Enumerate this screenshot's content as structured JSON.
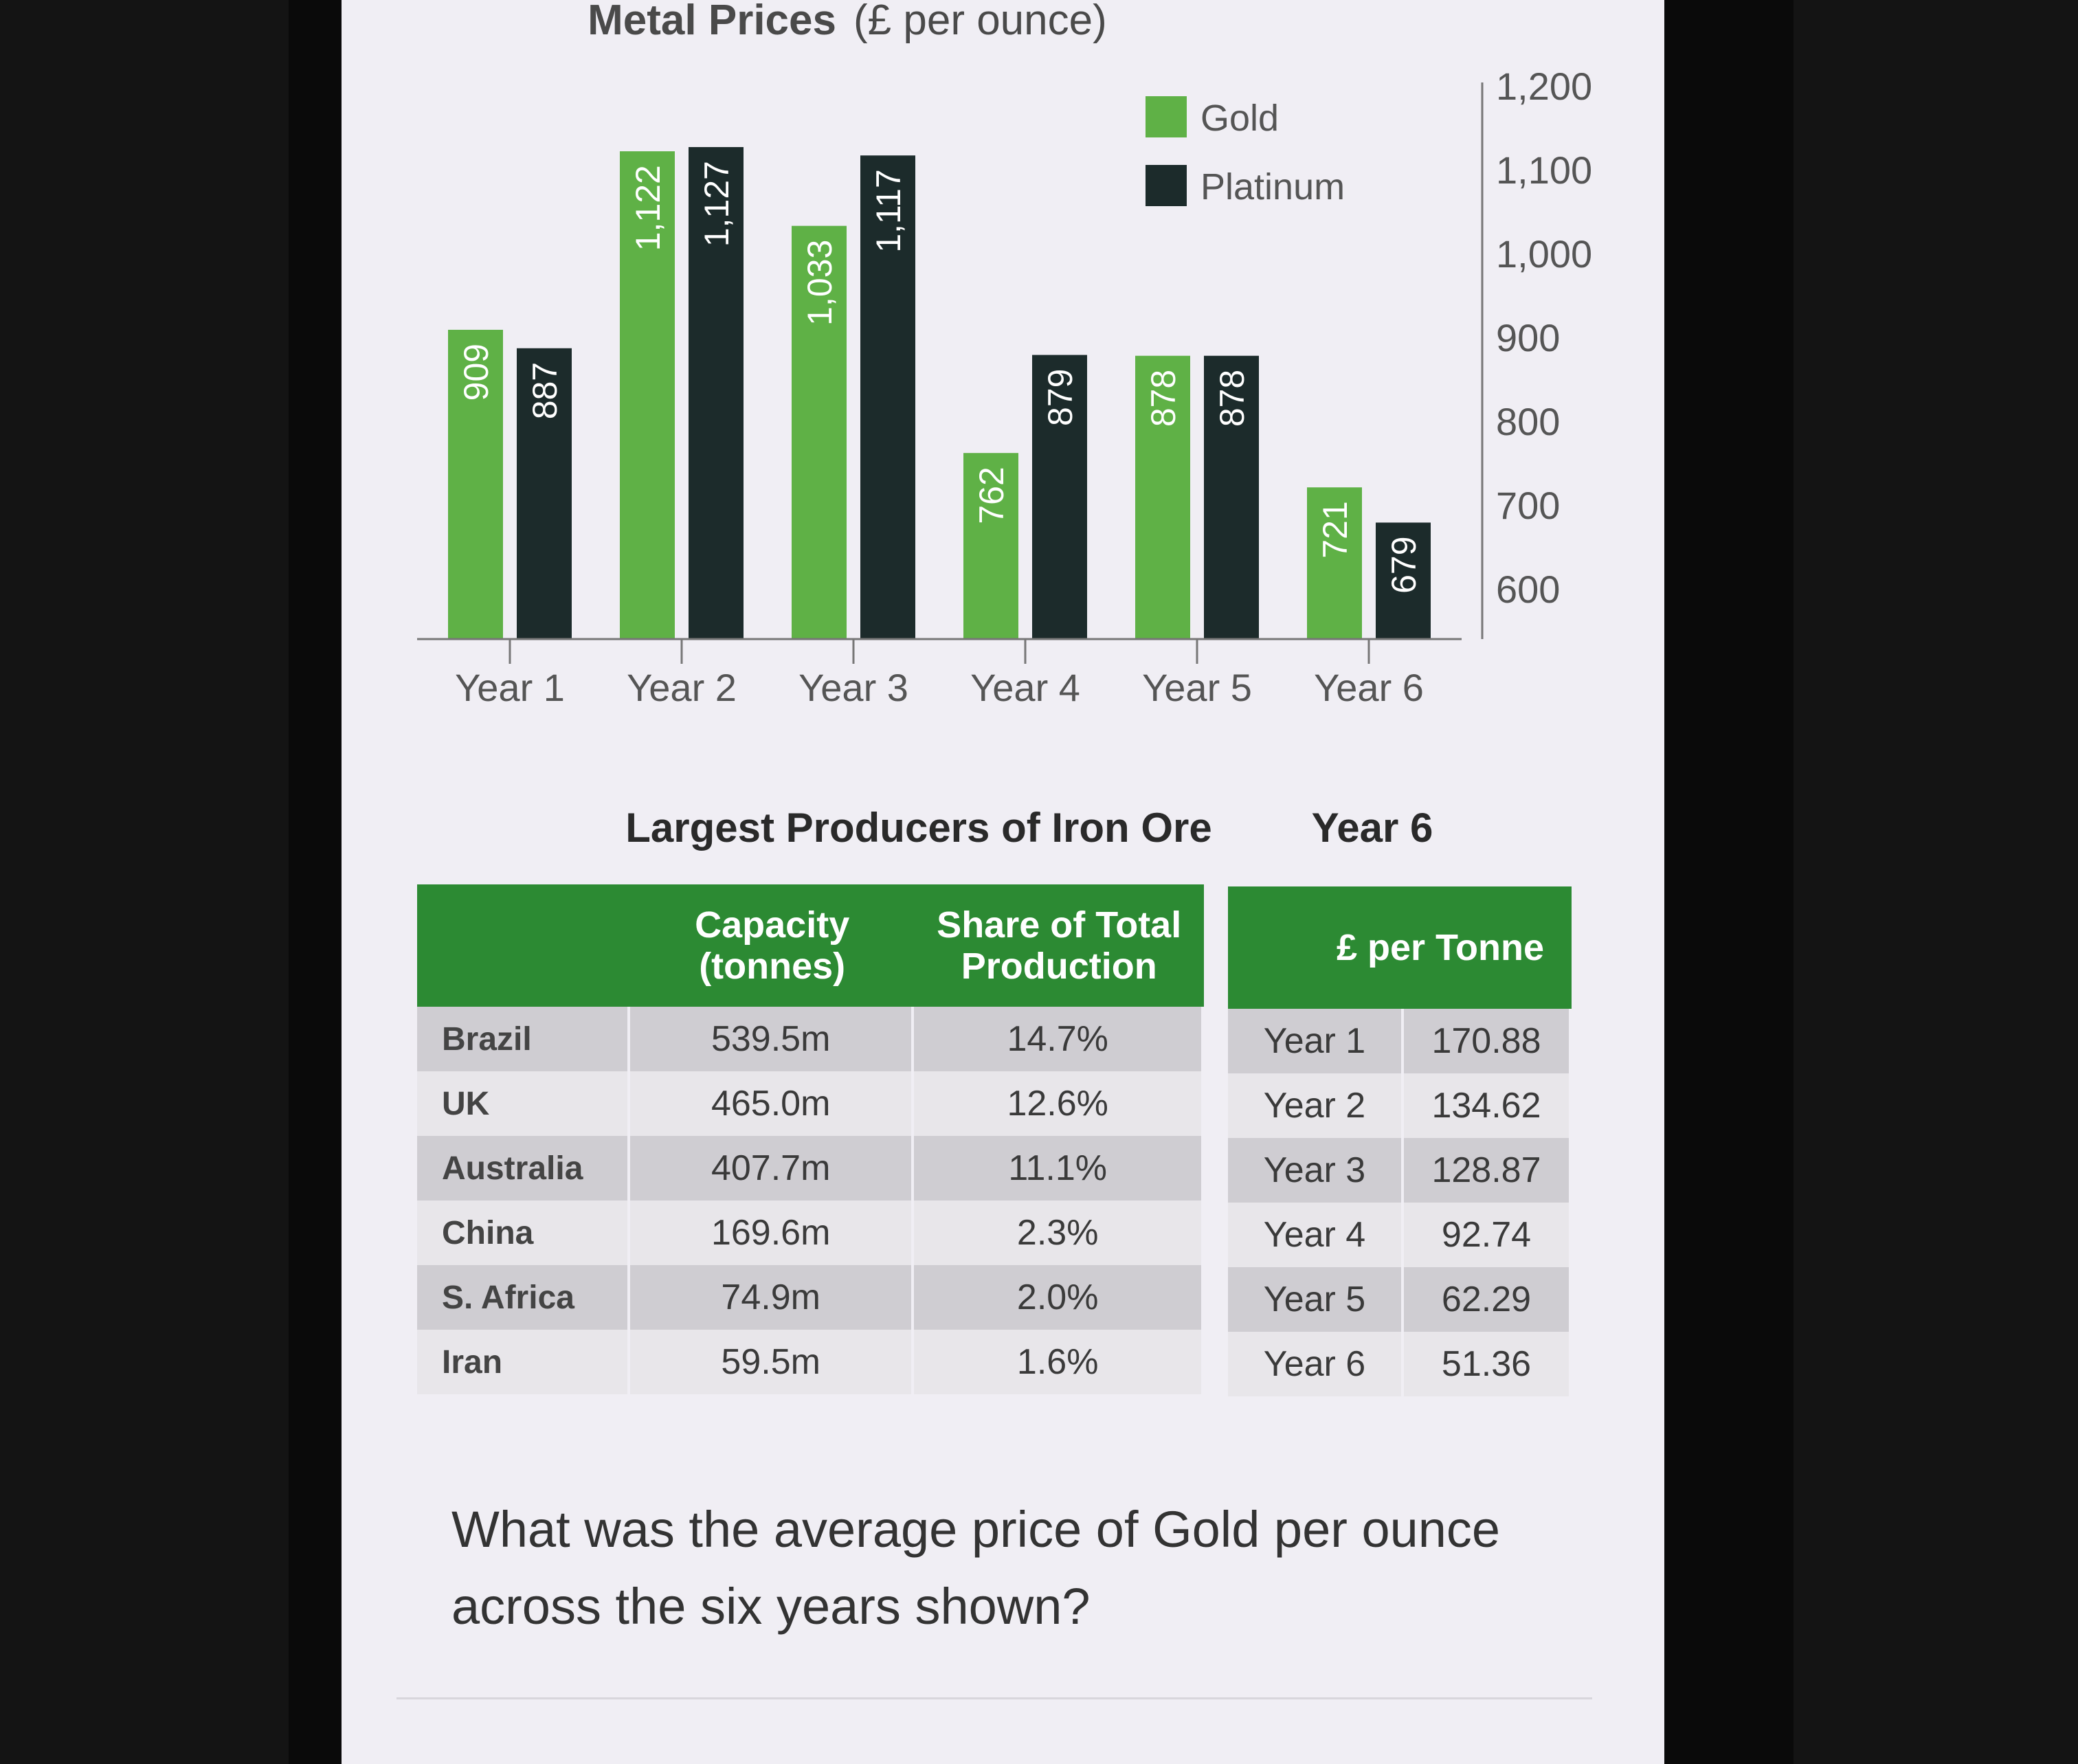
{
  "chart_data": {
    "type": "bar",
    "title": "Metal Prices",
    "subtitle": "(£ per ounce)",
    "categories": [
      "Year 1",
      "Year 2",
      "Year 3",
      "Year 4",
      "Year 5",
      "Year 6"
    ],
    "series": [
      {
        "name": "Gold",
        "values": [
          909,
          1122,
          1033,
          762,
          878,
          721
        ],
        "labels": [
          "909",
          "1,122",
          "1,033",
          "762",
          "878",
          "721"
        ],
        "color": "#5fb146"
      },
      {
        "name": "Platinum",
        "values": [
          887,
          1127,
          1117,
          879,
          878,
          679
        ],
        "labels": [
          "887",
          "1,127",
          "1,117",
          "879",
          "878",
          "679"
        ],
        "color": "#1c2b2b"
      }
    ],
    "yaxis_ticks": [
      600,
      700,
      800,
      900,
      1000,
      1100,
      1200
    ],
    "yaxis_tick_labels": [
      "600",
      "700",
      "800",
      "900",
      "1,000",
      "1,100",
      "1,200"
    ],
    "ylim": [
      540,
      1200
    ],
    "yaxis_side": "right",
    "legend_position": "top-right",
    "grid": false
  },
  "iron_ore": {
    "title": "Largest Producers of Iron Ore",
    "headers": [
      "",
      "Capacity (tonnes)",
      "Share of  Total Production"
    ],
    "rows": [
      {
        "country": "Brazil",
        "capacity": "539.5m",
        "share": "14.7%"
      },
      {
        "country": "UK",
        "capacity": "465.0m",
        "share": "12.6%"
      },
      {
        "country": "Australia",
        "capacity": "407.7m",
        "share": "11.1%"
      },
      {
        "country": "China",
        "capacity": "169.6m",
        "share": "2.3%"
      },
      {
        "country": "S. Africa",
        "capacity": "74.9m",
        "share": "2.0%"
      },
      {
        "country": "Iran",
        "capacity": "59.5m",
        "share": "1.6%"
      }
    ]
  },
  "price_table": {
    "title": "Year 6",
    "header": "£ per Tonne",
    "rows": [
      {
        "year": "Year 1",
        "price": "170.88"
      },
      {
        "year": "Year 2",
        "price": "134.62"
      },
      {
        "year": "Year 3",
        "price": "128.87"
      },
      {
        "year": "Year 4",
        "price": "92.74"
      },
      {
        "year": "Year 5",
        "price": "62.29"
      },
      {
        "year": "Year 6",
        "price": "51.36"
      }
    ]
  },
  "question": "What was the average price of Gold per ounce across the six years shown?"
}
